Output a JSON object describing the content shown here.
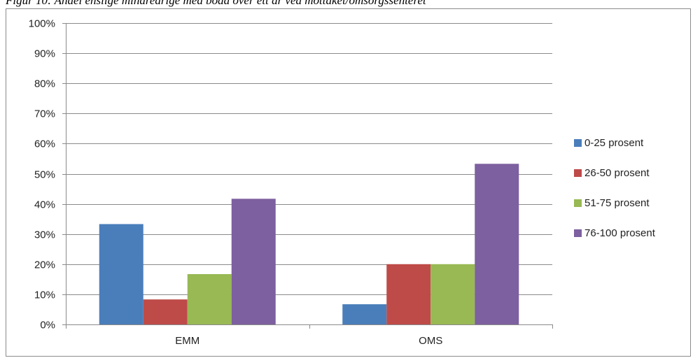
{
  "caption": "Figur 10: Andel enslige mindreårige med bodd over ett år ved mottaket/omsorgssenteret",
  "chart_data": {
    "type": "bar",
    "categories": [
      "EMM",
      "OMS"
    ],
    "series": [
      {
        "name": "0-25 prosent",
        "values": [
          33.3,
          6.7
        ],
        "color": "#4a7ebb"
      },
      {
        "name": "26-50 prosent",
        "values": [
          8.3,
          20.0
        ],
        "color": "#be4b48"
      },
      {
        "name": "51-75 prosent",
        "values": [
          16.7,
          20.0
        ],
        "color": "#98b954"
      },
      {
        "name": "76-100 prosent",
        "values": [
          41.7,
          53.3
        ],
        "color": "#7d60a0"
      }
    ],
    "yticks": [
      "0%",
      "10%",
      "20%",
      "30%",
      "40%",
      "50%",
      "60%",
      "70%",
      "80%",
      "90%",
      "100%"
    ],
    "ylim": [
      0,
      100
    ],
    "grid": true,
    "legend_position": "right"
  }
}
